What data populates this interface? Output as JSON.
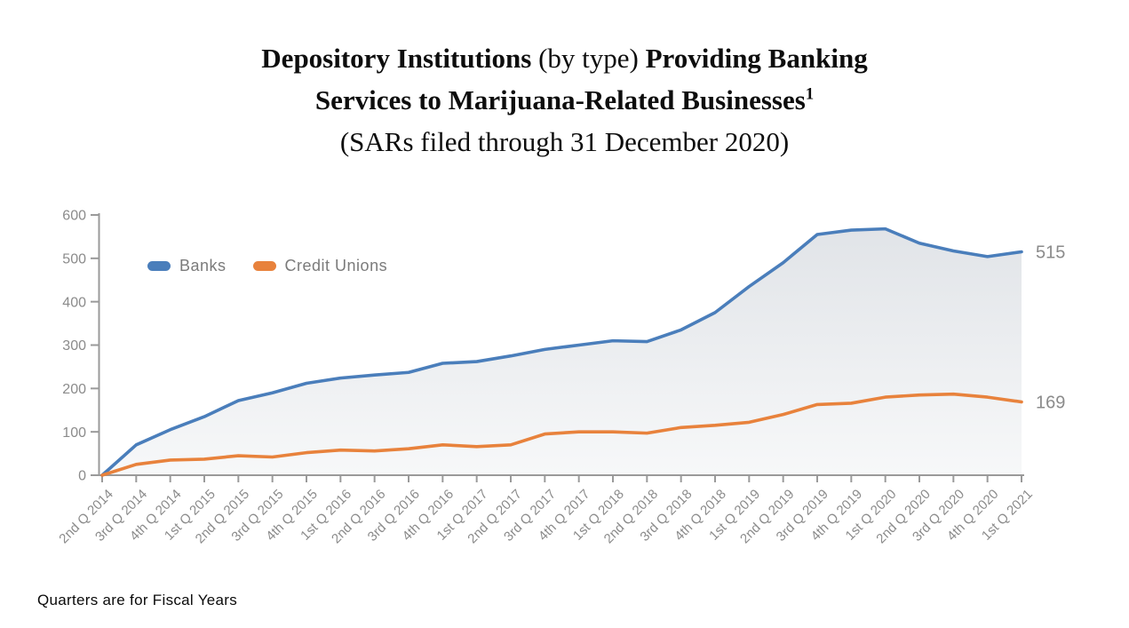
{
  "page": {
    "title": {
      "line1_bold_a": "Depository Institutions ",
      "line1_regular": "(by type) ",
      "line1_bold_b": "Providing Banking",
      "line2_bold": "Services to Marijuana-Related Businesses",
      "line2_superscript": "1",
      "line3_regular": "(SARs filed through 31 December 2020)"
    },
    "footnote": "Quarters are for Fiscal Years"
  },
  "chart_data": {
    "type": "line",
    "title": "",
    "xlabel": "",
    "ylabel": "",
    "ylim": [
      0,
      600
    ],
    "yticks": [
      0,
      100,
      200,
      300,
      400,
      500,
      600
    ],
    "grid": false,
    "legend_position": "inside-top-left",
    "axis_color": "#9a9a9a",
    "tick_label_color": "#8b8b8b",
    "area_fill_top_color": "#e1e4e8",
    "area_fill_bottom_color": "#f7f8f9",
    "categories": [
      "2nd Q 2014",
      "3rd Q 2014",
      "4th Q 2014",
      "1st Q 2015",
      "2nd Q 2015",
      "3rd Q 2015",
      "4th Q 2015",
      "1st Q 2016",
      "2nd Q 2016",
      "3rd Q 2016",
      "4th Q 2016",
      "1st Q 2017",
      "2nd Q 2017",
      "3rd Q 2017",
      "4th Q 2017",
      "1st Q 2018",
      "2nd Q 2018",
      "3rd Q 2018",
      "4th Q 2018",
      "1st Q 2019",
      "2nd Q 2019",
      "3rd Q 2019",
      "4th Q 2019",
      "1st Q 2020",
      "2nd Q 2020",
      "3rd Q 2020",
      "4th Q 2020",
      "1st Q 2021"
    ],
    "series": [
      {
        "name": "Banks",
        "color": "#4a7ebb",
        "end_label": "515",
        "values": [
          0,
          70,
          105,
          135,
          172,
          190,
          212,
          224,
          231,
          237,
          258,
          262,
          275,
          290,
          300,
          310,
          308,
          335,
          375,
          435,
          490,
          555,
          565,
          568,
          535,
          517,
          504,
          515
        ]
      },
      {
        "name": "Credit Unions",
        "color": "#e8823c",
        "end_label": "169",
        "values": [
          0,
          25,
          35,
          37,
          45,
          42,
          52,
          58,
          56,
          61,
          70,
          66,
          70,
          95,
          100,
          100,
          97,
          110,
          115,
          122,
          140,
          163,
          166,
          180,
          185,
          187,
          180,
          169
        ]
      }
    ]
  }
}
